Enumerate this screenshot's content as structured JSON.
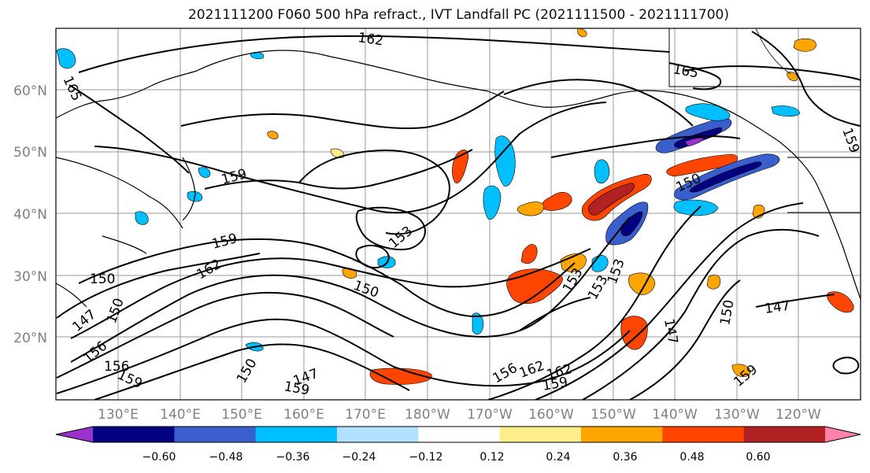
{
  "title": "2021111200 F060 500 hPa refract., IVT Landfall PC (2021111500 - 2021111700)",
  "lat_labels": [
    "60°N",
    "50°N",
    "40°N",
    "30°N",
    "20°N"
  ],
  "lon_labels": [
    "130°E",
    "140°E",
    "150°E",
    "160°E",
    "170°E",
    "180°W",
    "170°W",
    "160°W",
    "150°W",
    "140°W",
    "130°W",
    "120°W"
  ],
  "contour_labels": [
    "162",
    "165",
    "165",
    "159",
    "159",
    "159",
    "162",
    "153",
    "150",
    "150",
    "150",
    "147",
    "156",
    "156",
    "159",
    "147",
    "150",
    "159",
    "153",
    "153",
    "153",
    "156",
    "162",
    "162",
    "159",
    "147",
    "150",
    "147",
    "159",
    "150"
  ],
  "colorbar": {
    "colors": [
      "#9932CC",
      "#000080",
      "#3A5FCD",
      "#00BFFF",
      "#B0E2FF",
      "#FFFFFF",
      "#FFEC8B",
      "#FFA500",
      "#FF4500",
      "#B22222",
      "#FF82AB"
    ],
    "labels": [
      "−0.60",
      "−0.48",
      "−0.36",
      "−0.24",
      "−0.12",
      "0.12",
      "0.24",
      "0.36",
      "0.48",
      "0.60"
    ]
  }
}
